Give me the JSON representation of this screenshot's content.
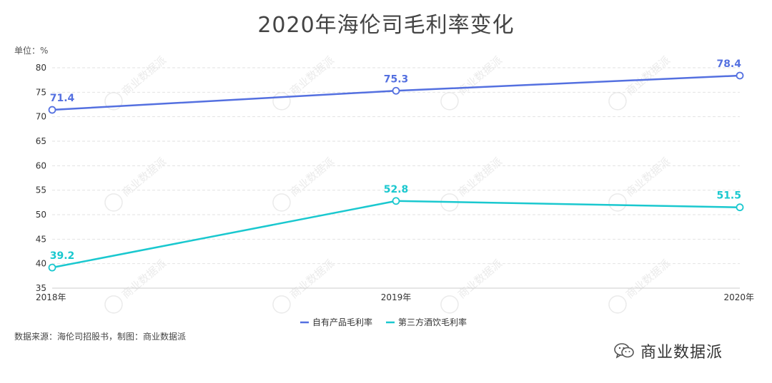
{
  "chart_data": {
    "type": "line",
    "title": "2020年海伦司毛利率变化",
    "unit_label": "单位：%",
    "x": [
      "2018年",
      "2019年",
      "2020年"
    ],
    "ylim": [
      35,
      80
    ],
    "yticks": [
      35,
      40,
      45,
      50,
      55,
      60,
      65,
      70,
      75,
      80
    ],
    "grid": true,
    "legend_position": "bottom-center",
    "series": [
      {
        "name": "自有产品毛利率",
        "values": [
          71.4,
          75.3,
          78.4
        ],
        "labels": [
          "71.4",
          "75.3",
          "78.4"
        ],
        "color": "#5470e0"
      },
      {
        "name": "第三方酒饮毛利率",
        "values": [
          39.2,
          52.8,
          51.5
        ],
        "labels": [
          "39.2",
          "52.8",
          "51.5"
        ],
        "color": "#1ac8cf"
      }
    ]
  },
  "source_note": "数据来源：海伦司招股书，制图：商业数据派",
  "brand": {
    "name": "商业数据派",
    "icon": "wechat-icon"
  },
  "watermark": {
    "text": "商业数据派"
  }
}
